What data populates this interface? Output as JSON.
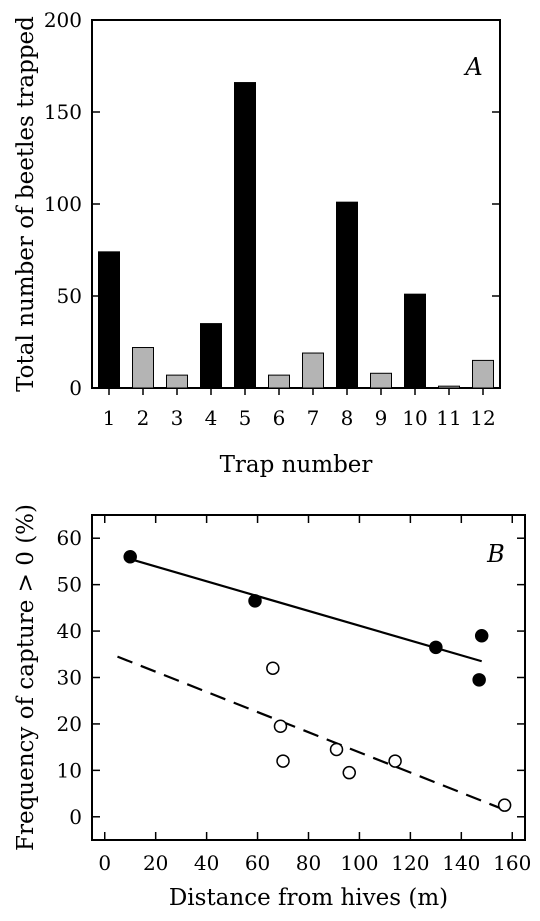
{
  "chart_data": [
    {
      "type": "bar",
      "panel": "A",
      "categories": [
        "1",
        "2",
        "3",
        "4",
        "5",
        "6",
        "7",
        "8",
        "9",
        "10",
        "11",
        "12"
      ],
      "values": [
        74,
        22,
        7,
        35,
        166,
        7,
        19,
        101,
        8,
        51,
        1,
        15
      ],
      "bar_colors": [
        "#000000",
        "#b4b4b4",
        "#b4b4b4",
        "#000000",
        "#000000",
        "#b4b4b4",
        "#b4b4b4",
        "#000000",
        "#b4b4b4",
        "#000000",
        "#b4b4b4",
        "#b4b4b4"
      ],
      "xlabel": "Trap number",
      "ylabel": "Total number of beetles trapped",
      "ylim": [
        0,
        200
      ],
      "yticks": [
        "0",
        "50",
        "100",
        "150",
        "200"
      ],
      "grid": false
    },
    {
      "type": "scatter",
      "panel": "B",
      "xlabel": "Distance from hives (m)",
      "ylabel": "Frequency of capture > 0 (%)",
      "xlim": [
        -5,
        165
      ],
      "ylim": [
        -5,
        65
      ],
      "xticks": [
        "0",
        "20",
        "40",
        "60",
        "80",
        "100",
        "120",
        "140",
        "160"
      ],
      "yticks": [
        "0",
        "10",
        "20",
        "30",
        "40",
        "50",
        "60"
      ],
      "grid": false,
      "series": [
        {
          "marker": "filled-circle",
          "points": [
            [
              10,
              56
            ],
            [
              59,
              46.5
            ],
            [
              130,
              36.5
            ],
            [
              148,
              39
            ],
            [
              147,
              29.5
            ]
          ],
          "fit_line": [
            [
              10,
              55.5
            ],
            [
              148,
              33.5
            ]
          ],
          "line_style": "solid"
        },
        {
          "marker": "open-circle",
          "points": [
            [
              66,
              32
            ],
            [
              69,
              19.5
            ],
            [
              70,
              12
            ],
            [
              91,
              14.5
            ],
            [
              96,
              9.5
            ],
            [
              114,
              12
            ],
            [
              157,
              2.5
            ]
          ],
          "fit_line": [
            [
              5,
              34.5
            ],
            [
              157,
              1.5
            ]
          ],
          "line_style": "dashed"
        }
      ]
    }
  ]
}
